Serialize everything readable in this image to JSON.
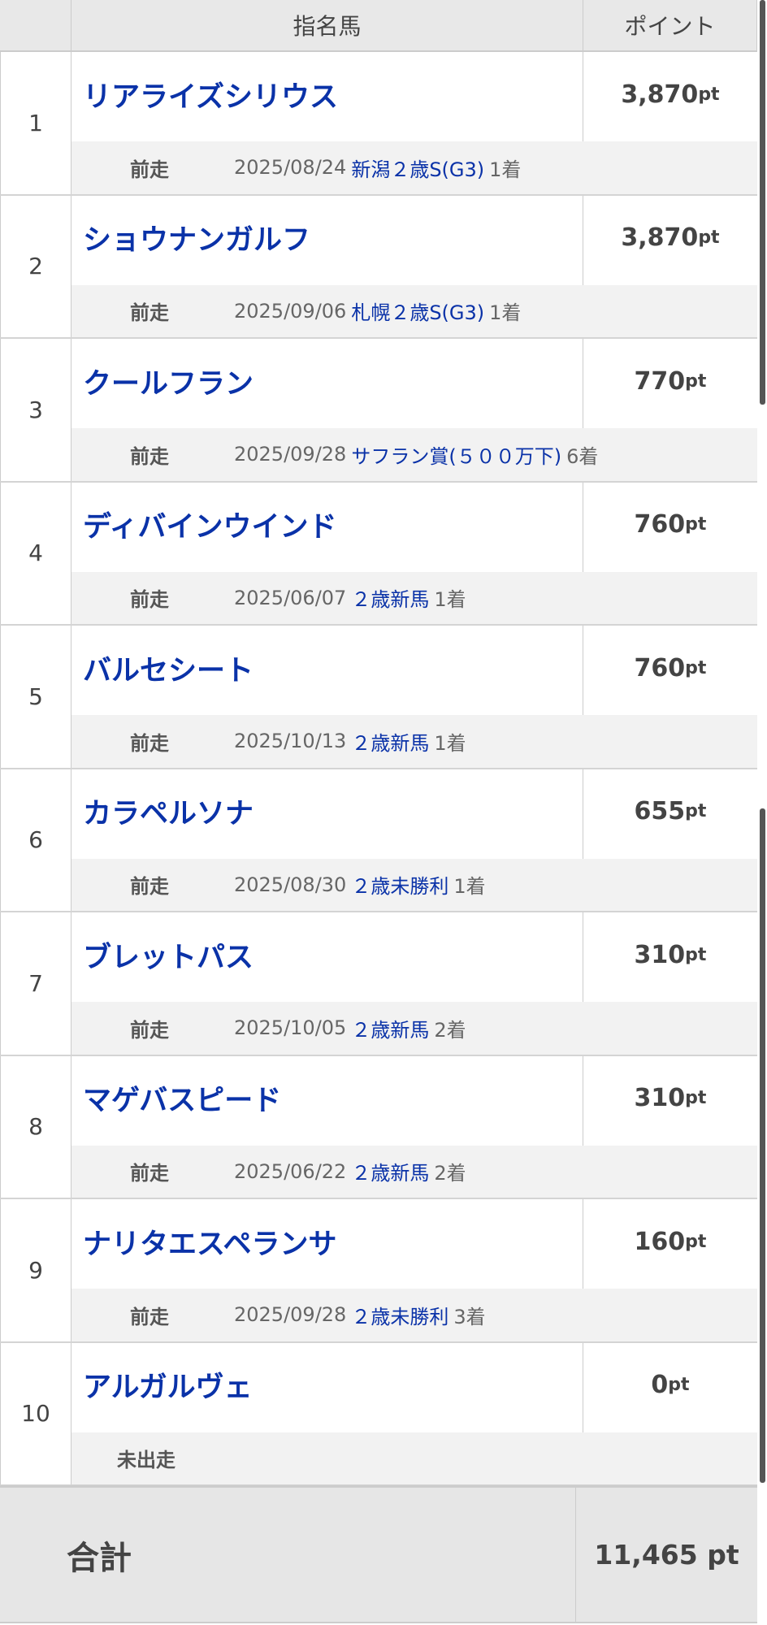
{
  "header": {
    "col_horse": "指名馬",
    "col_points": "ポイント"
  },
  "prev_label": "前走",
  "rows": [
    {
      "rank": "1",
      "name": "リアライズシリウス",
      "points": "3,870",
      "unit": "pt",
      "date": "2025/08/24",
      "race": "新潟２歳S(G3)",
      "result": "1着"
    },
    {
      "rank": "2",
      "name": "ショウナンガルフ",
      "points": "3,870",
      "unit": "pt",
      "date": "2025/09/06",
      "race": "札幌２歳S(G3)",
      "result": "1着"
    },
    {
      "rank": "3",
      "name": "クールフラン",
      "points": "770",
      "unit": "pt",
      "date": "2025/09/28",
      "race": "サフラン賞(５００万下)",
      "result": "6着"
    },
    {
      "rank": "4",
      "name": "ディバインウインド",
      "points": "760",
      "unit": "pt",
      "date": "2025/06/07",
      "race": "２歳新馬",
      "result": "1着"
    },
    {
      "rank": "5",
      "name": "バルセシート",
      "points": "760",
      "unit": "pt",
      "date": "2025/10/13",
      "race": "２歳新馬",
      "result": "1着"
    },
    {
      "rank": "6",
      "name": "カラペルソナ",
      "points": "655",
      "unit": "pt",
      "date": "2025/08/30",
      "race": "２歳未勝利",
      "result": "1着"
    },
    {
      "rank": "7",
      "name": "ブレットパス",
      "points": "310",
      "unit": "pt",
      "date": "2025/10/05",
      "race": "２歳新馬",
      "result": "2着"
    },
    {
      "rank": "8",
      "name": "マゲバスピード",
      "points": "310",
      "unit": "pt",
      "date": "2025/06/22",
      "race": "２歳新馬",
      "result": "2着"
    },
    {
      "rank": "9",
      "name": "ナリタエスペランサ",
      "points": "160",
      "unit": "pt",
      "date": "2025/09/28",
      "race": "２歳未勝利",
      "result": "3着"
    },
    {
      "rank": "10",
      "name": "アルガルヴェ",
      "points": "0",
      "unit": "pt",
      "not_started": "未出走"
    }
  ],
  "total": {
    "label": "合計",
    "value": "11,465 pt"
  }
}
